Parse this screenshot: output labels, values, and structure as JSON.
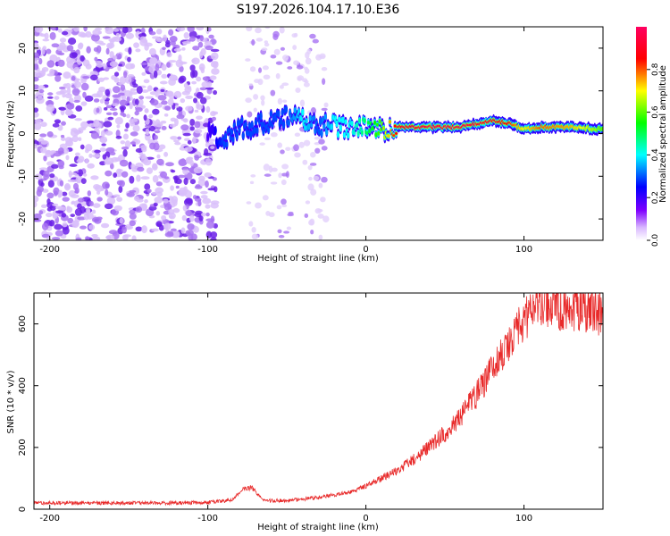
{
  "figure_title": "S197.2026.104.17.10.E36",
  "chart_data": [
    {
      "type": "heatmap",
      "title": "S197.2026.104.17.10.E36",
      "xlabel": "Height of straight line (km)",
      "ylabel": "Frequency (Hz)",
      "xlim": [
        -210,
        150
      ],
      "ylim": [
        -25,
        25
      ],
      "x_ticks": [
        -200,
        -100,
        0,
        100
      ],
      "x_tick_labels": [
        "-200",
        "-100",
        "0",
        "100"
      ],
      "y_ticks": [
        -20,
        -10,
        0,
        10,
        20
      ],
      "y_tick_labels": [
        "-20",
        "-10",
        "0",
        "10",
        "20"
      ],
      "colorbar": {
        "label": "Normalized spectral amplitude",
        "range": [
          0,
          1
        ],
        "ticks": [
          0.0,
          0.2,
          0.4,
          0.6,
          0.8
        ],
        "tick_labels": [
          "0.0",
          "0.2",
          "0.4",
          "0.6",
          "0.8"
        ],
        "colors": [
          "#ffffff",
          "#7f00ff",
          "#0000ff",
          "#00ffff",
          "#00ff00",
          "#ffff00",
          "#ff0000",
          "#ff00aa"
        ]
      },
      "signal_ridge": {
        "x": [
          -100,
          -90,
          -80,
          -70,
          -60,
          -50,
          -40,
          -30,
          -20,
          -10,
          0,
          10,
          20,
          40,
          60,
          80,
          90,
          100,
          110,
          130,
          150
        ],
        "freq_hz": [
          0,
          -2,
          1,
          2,
          3,
          4,
          3,
          2,
          2,
          1,
          2,
          1,
          1.5,
          1.5,
          1.5,
          3,
          2.5,
          1,
          1.5,
          1.5,
          1
        ],
        "peak_amplitude": [
          0.2,
          0.3,
          0.3,
          0.3,
          0.3,
          0.3,
          0.4,
          0.3,
          0.4,
          0.4,
          0.5,
          0.6,
          0.9,
          0.95,
          0.95,
          0.9,
          0.85,
          0.7,
          0.8,
          0.75,
          0.6
        ]
      },
      "noise_region_x": [
        -210,
        -95
      ]
    },
    {
      "type": "line",
      "title": "",
      "xlabel": "Height of straight line (km)",
      "ylabel": "SNR (10 * v/v)",
      "xlim": [
        -210,
        150
      ],
      "ylim": [
        0,
        700
      ],
      "x_ticks": [
        -200,
        -100,
        0,
        100
      ],
      "x_tick_labels": [
        "-200",
        "-100",
        "0",
        "100"
      ],
      "y_ticks": [
        0,
        200,
        400,
        600
      ],
      "y_tick_labels": [
        "0",
        "200",
        "400",
        "600"
      ],
      "line_color": "#e82a2a",
      "series": [
        {
          "name": "SNR",
          "x": [
            -210,
            -180,
            -150,
            -120,
            -100,
            -85,
            -78,
            -72,
            -65,
            -50,
            -30,
            -10,
            0,
            10,
            20,
            30,
            40,
            50,
            60,
            70,
            80,
            90,
            100,
            105,
            110,
            120,
            130,
            140,
            150
          ],
          "y": [
            20,
            20,
            20,
            20,
            22,
            30,
            65,
            70,
            28,
            28,
            38,
            55,
            75,
            100,
            125,
            160,
            200,
            245,
            300,
            370,
            450,
            530,
            610,
            655,
            670,
            660,
            650,
            640,
            635
          ]
        }
      ]
    }
  ]
}
